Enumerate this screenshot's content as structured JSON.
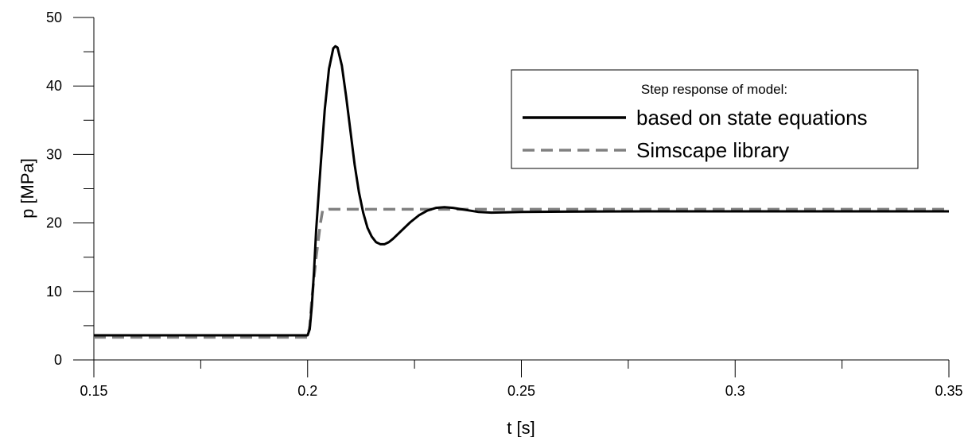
{
  "chart_data": {
    "type": "line",
    "xlabel": "t [s]",
    "ylabel": "p [MPa]",
    "xlim": [
      0.15,
      0.35
    ],
    "ylim": [
      0,
      50
    ],
    "x_ticks": [
      0.15,
      0.2,
      0.25,
      0.3,
      0.35
    ],
    "x_tick_labels": [
      "0.15",
      "0.2",
      "0.25",
      "0.3",
      "0.35"
    ],
    "x_minor_ticks": [
      0.175,
      0.225,
      0.275,
      0.325
    ],
    "y_ticks": [
      0,
      10,
      20,
      30,
      40,
      50
    ],
    "y_tick_labels": [
      "0",
      "10",
      "20",
      "30",
      "40",
      "50"
    ],
    "y_minor_ticks": [
      5,
      15,
      25,
      35,
      45
    ],
    "grid": false,
    "legend": {
      "title": "Step response of model:",
      "position": "top-right"
    },
    "series": [
      {
        "name": "based on state equations",
        "color": "#000000",
        "style": "solid",
        "x": [
          0.15,
          0.2,
          0.2005,
          0.201,
          0.2015,
          0.202,
          0.203,
          0.204,
          0.205,
          0.206,
          0.2065,
          0.207,
          0.208,
          0.209,
          0.21,
          0.211,
          0.212,
          0.213,
          0.214,
          0.215,
          0.216,
          0.217,
          0.218,
          0.219,
          0.22,
          0.222,
          0.224,
          0.226,
          0.228,
          0.23,
          0.232,
          0.234,
          0.236,
          0.238,
          0.24,
          0.243,
          0.246,
          0.25,
          0.26,
          0.28,
          0.3,
          0.32,
          0.35
        ],
        "y": [
          3.6,
          3.6,
          4.5,
          8.0,
          13.0,
          19.0,
          28.0,
          36.5,
          42.5,
          45.5,
          45.8,
          45.6,
          43.0,
          38.5,
          33.5,
          28.5,
          24.5,
          21.5,
          19.3,
          18.0,
          17.2,
          16.9,
          16.9,
          17.2,
          17.7,
          18.9,
          20.1,
          21.1,
          21.8,
          22.2,
          22.3,
          22.2,
          22.0,
          21.8,
          21.6,
          21.5,
          21.55,
          21.6,
          21.65,
          21.7,
          21.7,
          21.7,
          21.7
        ]
      },
      {
        "name": "Simscape library",
        "color": "#808080",
        "style": "dashed",
        "x": [
          0.15,
          0.2,
          0.2005,
          0.201,
          0.202,
          0.203,
          0.2035,
          0.205,
          0.25,
          0.3,
          0.35
        ],
        "y": [
          3.3,
          3.3,
          5.0,
          9.0,
          15.0,
          20.0,
          21.8,
          22.0,
          22.0,
          22.0,
          22.0
        ]
      }
    ]
  }
}
